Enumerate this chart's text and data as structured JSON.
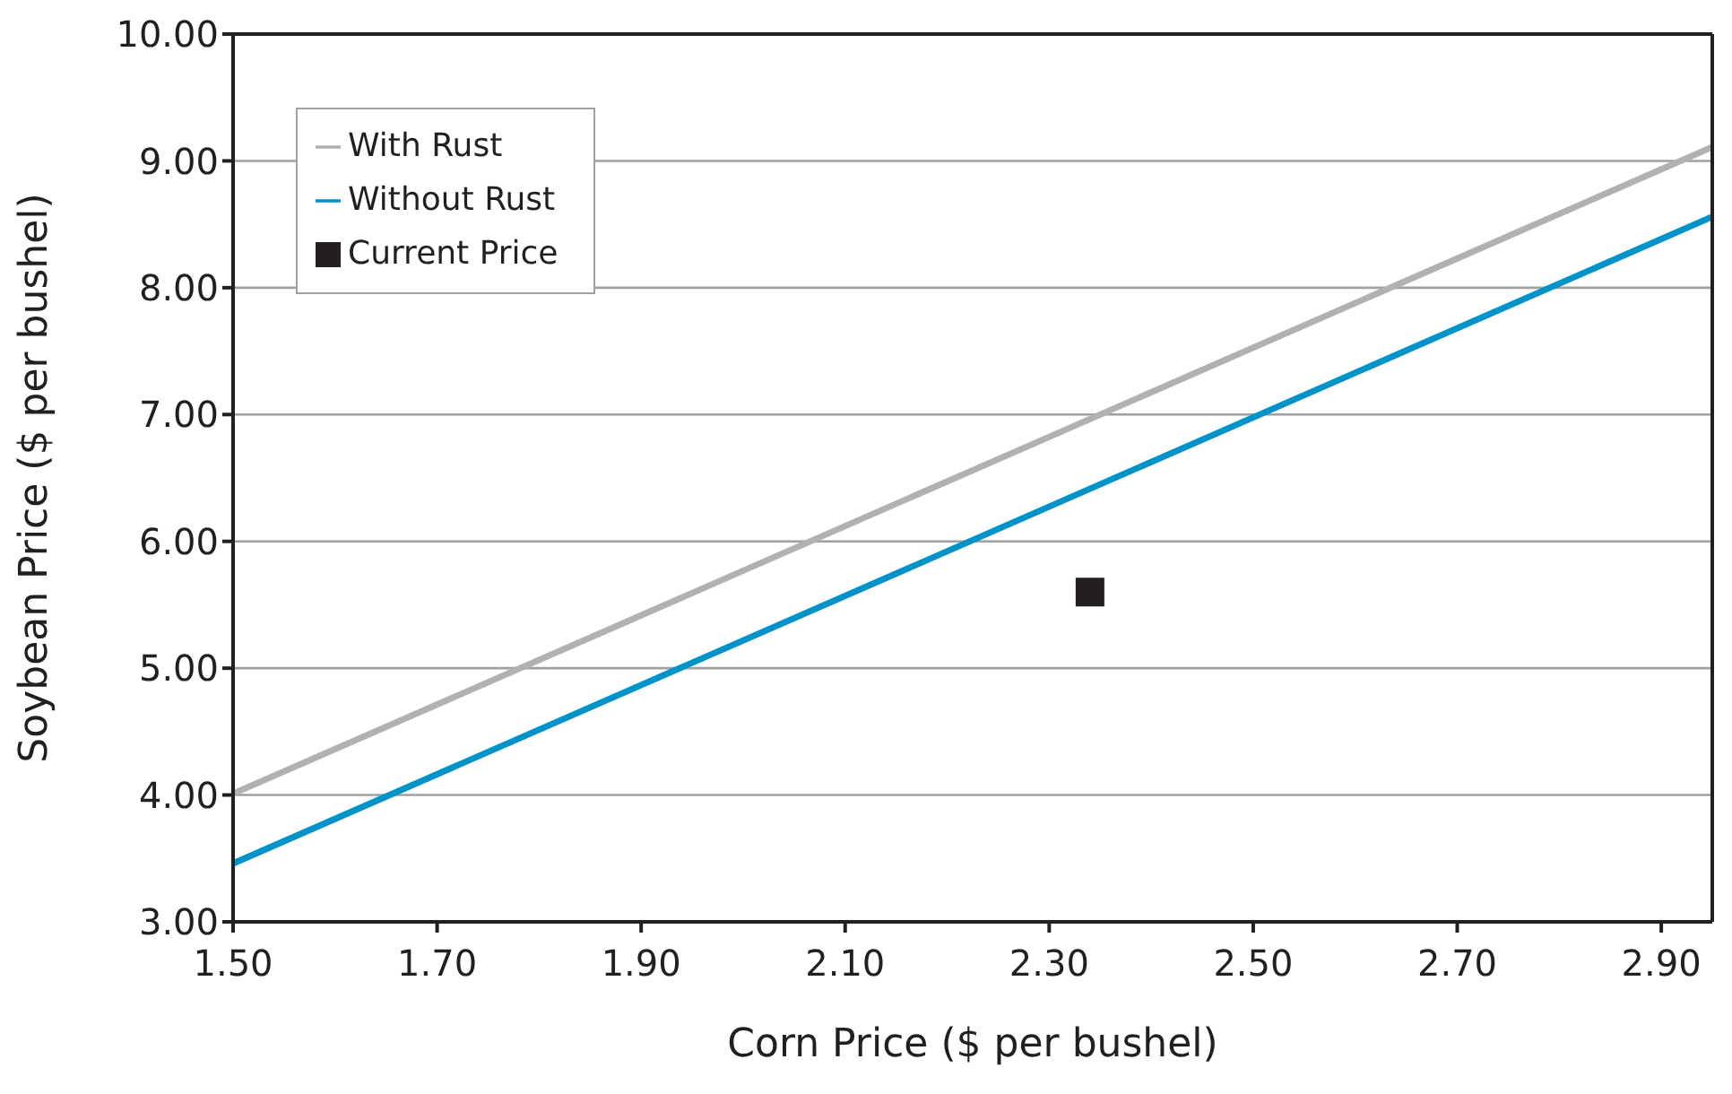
{
  "chart_data": {
    "type": "line",
    "xlabel": "Corn Price ($ per bushel)",
    "ylabel": "Soybean Price ($ per bushel)",
    "xlim": [
      1.5,
      2.95
    ],
    "ylim": [
      3,
      10
    ],
    "xticks": [
      {
        "value": 1.5,
        "label": "1.50"
      },
      {
        "value": 1.7,
        "label": "1.70"
      },
      {
        "value": 1.9,
        "label": "1.90"
      },
      {
        "value": 2.1,
        "label": "2.10"
      },
      {
        "value": 2.3,
        "label": "2.30"
      },
      {
        "value": 2.5,
        "label": "2.50"
      },
      {
        "value": 2.7,
        "label": "2.70"
      },
      {
        "value": 2.9,
        "label": "2.90"
      }
    ],
    "yticks": [
      {
        "value": 3,
        "label": "3.00"
      },
      {
        "value": 4,
        "label": "4.00"
      },
      {
        "value": 5,
        "label": "5.00"
      },
      {
        "value": 6,
        "label": "6.00"
      },
      {
        "value": 7,
        "label": "7.00"
      },
      {
        "value": 8,
        "label": "8.00"
      },
      {
        "value": 9,
        "label": "9.00"
      },
      {
        "value": 10,
        "label": "10.00"
      }
    ],
    "grid": "y",
    "legend": "top left",
    "series": [
      {
        "name": "With Rust",
        "color": "#b1b1b3",
        "x": [
          1.5,
          2.95
        ],
        "values": [
          4.01,
          9.11
        ]
      },
      {
        "name": "Without Rust",
        "color": "#0093c8",
        "x": [
          1.5,
          2.95
        ],
        "values": [
          3.46,
          8.56
        ]
      },
      {
        "name": "Current Price",
        "type": "scatter",
        "marker": "square",
        "color": "#231f20",
        "x": [
          2.34
        ],
        "values": [
          5.6
        ]
      }
    ]
  }
}
